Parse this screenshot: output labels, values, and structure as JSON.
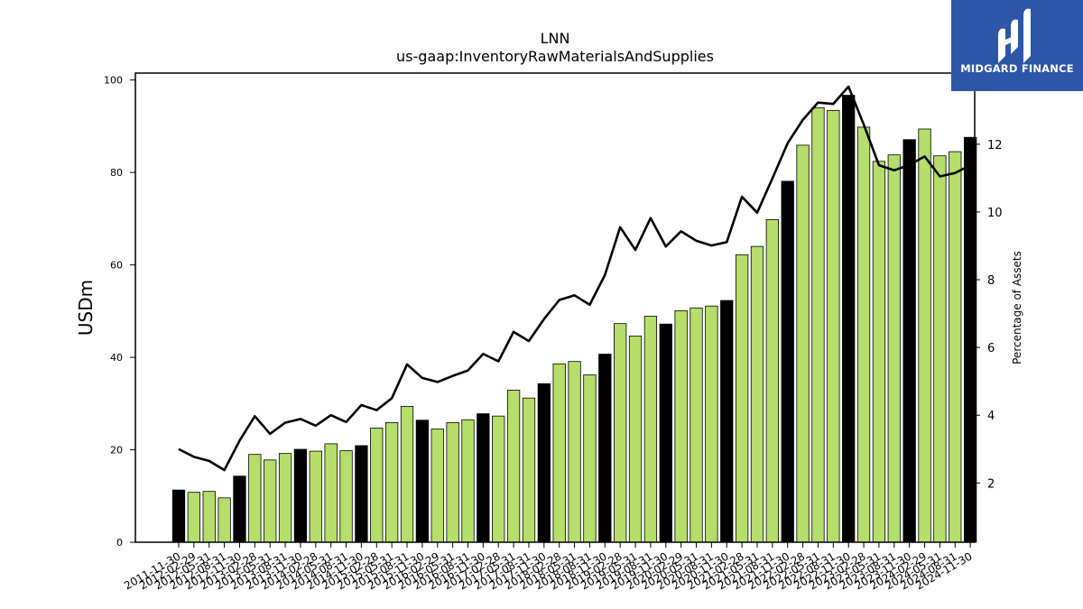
{
  "brand": {
    "name": "MIDGARD FINANCE",
    "bg_color": "#2e56a8"
  },
  "chart_data": {
    "type": "bar",
    "title": "LNN",
    "subtitle": "us-gaap:InventoryRawMaterialsAndSupplies",
    "ylabel": "USDm",
    "y2label": "Percentage of Assets",
    "ylim": [
      0,
      101.5
    ],
    "y2lim": [
      0.25,
      14.1
    ],
    "yticks": [
      0,
      20,
      40,
      60,
      80,
      100
    ],
    "y2ticks": [
      2,
      4,
      6,
      8,
      10,
      12
    ],
    "colors": {
      "fiscal_year_end": "#000000",
      "quarter": "#b5de6a",
      "line": "#000000"
    },
    "categories": [
      "2011-11-30",
      "2012-02-29",
      "2012-05-31",
      "2012-08-31",
      "2012-11-30",
      "2013-02-28",
      "2013-05-31",
      "2013-08-31",
      "2013-11-30",
      "2014-02-28",
      "2014-05-31",
      "2014-08-31",
      "2014-11-30",
      "2015-02-28",
      "2015-05-31",
      "2015-08-31",
      "2015-11-30",
      "2016-02-29",
      "2016-05-31",
      "2016-08-31",
      "2016-11-30",
      "2017-02-28",
      "2017-05-31",
      "2017-08-31",
      "2017-11-30",
      "2018-02-28",
      "2018-05-31",
      "2018-08-31",
      "2018-11-30",
      "2019-02-28",
      "2019-05-31",
      "2019-08-31",
      "2019-11-30",
      "2020-02-29",
      "2020-05-31",
      "2020-08-31",
      "2020-11-30",
      "2021-02-28",
      "2021-05-31",
      "2021-08-31",
      "2021-11-30",
      "2022-02-28",
      "2022-05-31",
      "2022-08-31",
      "2022-11-30",
      "2023-02-28",
      "2023-05-31",
      "2023-08-31",
      "2023-11-30",
      "2024-02-29",
      "2024-05-31",
      "2024-08-31",
      "2024-11-30"
    ],
    "series": [
      {
        "type": "bar",
        "values": [
          11.3,
          10.8,
          11.0,
          9.6,
          14.3,
          19.0,
          17.8,
          19.2,
          20.1,
          19.7,
          21.3,
          19.8,
          20.9,
          24.7,
          25.9,
          29.4,
          26.4,
          24.5,
          25.9,
          26.5,
          27.8,
          27.3,
          32.9,
          31.2,
          34.3,
          38.6,
          39.1,
          36.2,
          40.7,
          47.3,
          44.6,
          48.9,
          47.2,
          50.1,
          50.7,
          51.1,
          52.3,
          62.2,
          64.0,
          69.8,
          78.1,
          85.9,
          94.0,
          93.4,
          96.7,
          89.8,
          82.4,
          83.8,
          87.1,
          89.4,
          83.6,
          84.5,
          87.6
        ],
        "fiscal_year_end": [
          true,
          false,
          false,
          false,
          true,
          false,
          false,
          false,
          true,
          false,
          false,
          false,
          true,
          false,
          false,
          false,
          true,
          false,
          false,
          false,
          true,
          false,
          false,
          false,
          true,
          false,
          false,
          false,
          true,
          false,
          false,
          false,
          true,
          false,
          false,
          false,
          true,
          false,
          false,
          false,
          true,
          false,
          false,
          false,
          true,
          false,
          false,
          false,
          true,
          false,
          false,
          false,
          true
        ]
      },
      {
        "type": "line",
        "axis": "right",
        "values": [
          3.0,
          2.77,
          2.65,
          2.38,
          3.25,
          3.97,
          3.45,
          3.78,
          3.89,
          3.69,
          4.0,
          3.8,
          4.3,
          4.15,
          4.5,
          5.5,
          5.1,
          4.98,
          5.16,
          5.32,
          5.81,
          5.59,
          6.46,
          6.19,
          6.84,
          7.4,
          7.54,
          7.26,
          8.14,
          9.55,
          8.88,
          9.82,
          8.98,
          9.43,
          9.15,
          9.01,
          9.11,
          10.45,
          9.98,
          10.99,
          12.03,
          12.72,
          13.23,
          13.19,
          13.7,
          12.58,
          11.38,
          11.23,
          11.39,
          11.64,
          11.05,
          11.15,
          11.38
        ]
      }
    ],
    "legend": "none",
    "grid": false
  }
}
